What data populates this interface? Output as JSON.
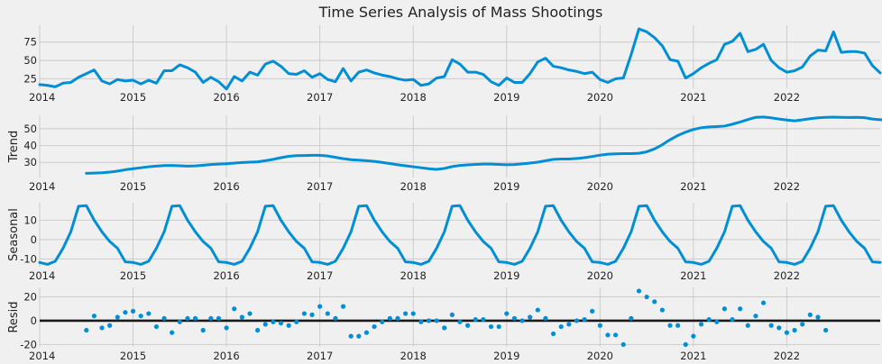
{
  "chart_data": {
    "type": "line",
    "title": "Time Series Analysis of Mass Shootings",
    "start": "2014-01",
    "x_ticks": [
      "2014",
      "2015",
      "2016",
      "2017",
      "2018",
      "2019",
      "2020",
      "2021",
      "2022"
    ],
    "panels": [
      {
        "name": "observed",
        "ylabel": "",
        "kind": "line",
        "color": "#008fd5",
        "ylim": [
          12,
          98
        ],
        "yticks": [
          25,
          50,
          75
        ],
        "offset": 0,
        "values": [
          17,
          16,
          14,
          19,
          20,
          27,
          32,
          37,
          22,
          18,
          24,
          22,
          23,
          18,
          23,
          19,
          36,
          36,
          44,
          40,
          34,
          20,
          27,
          21,
          11,
          28,
          22,
          34,
          30,
          45,
          49,
          42,
          32,
          31,
          36,
          27,
          32,
          24,
          21,
          39,
          22,
          34,
          37,
          33,
          30,
          28,
          25,
          23,
          24,
          16,
          18,
          26,
          28,
          51,
          45,
          34,
          34,
          31,
          21,
          16,
          26,
          20,
          20,
          32,
          48,
          53,
          42,
          40,
          37,
          35,
          32,
          34,
          24,
          20,
          25,
          26,
          58,
          93,
          89,
          81,
          70,
          51,
          49,
          26,
          32,
          40,
          46,
          51,
          72,
          76,
          87,
          62,
          65,
          72,
          50,
          40,
          34,
          36,
          41,
          56,
          64,
          63,
          89,
          61,
          62,
          62,
          60,
          43,
          33
        ]
      },
      {
        "name": "trend",
        "ylabel": "Trend",
        "kind": "line",
        "color": "#008fd5",
        "ylim": [
          21,
          58
        ],
        "yticks": [
          30,
          40,
          50
        ],
        "offset": 6,
        "values": [
          23.5,
          23.6,
          23.8,
          24.2,
          24.8,
          25.6,
          26.2,
          26.8,
          27.4,
          27.8,
          28.1,
          28.2,
          28.0,
          27.8,
          27.9,
          28.3,
          28.7,
          29.0,
          29.2,
          29.6,
          29.9,
          30.1,
          30.3,
          31.0,
          31.8,
          32.8,
          33.6,
          34.0,
          34.1,
          34.2,
          34.2,
          33.8,
          33.0,
          32.2,
          31.6,
          31.3,
          31.0,
          30.6,
          30.0,
          29.3,
          28.6,
          28.0,
          27.4,
          26.8,
          26.2,
          25.8,
          26.4,
          27.5,
          28.2,
          28.5,
          28.8,
          29.0,
          29.0,
          28.8,
          28.6,
          28.7,
          29.1,
          29.6,
          30.1,
          31.0,
          31.8,
          32.0,
          32.0,
          32.3,
          32.8,
          33.5,
          34.3,
          34.9,
          35.1,
          35.2,
          35.2,
          35.4,
          36.3,
          38.0,
          40.5,
          43.5,
          46.0,
          48.0,
          49.6,
          50.6,
          51.1,
          51.3,
          51.6,
          52.7,
          54.0,
          55.5,
          56.8,
          57.0,
          56.5,
          55.8,
          55.2,
          54.7,
          55.3,
          56.0,
          56.5,
          56.8,
          56.9,
          56.8,
          56.7,
          56.8,
          56.6,
          55.8,
          55.4,
          55.4,
          55.3,
          54.8,
          54.1,
          53.4
        ]
      },
      {
        "name": "seasonal",
        "ylabel": "Seasonal",
        "kind": "line",
        "color": "#008fd5",
        "ylim": [
          -14,
          19
        ],
        "yticks": [
          -10,
          0,
          10
        ],
        "offset": 0,
        "pattern": [
          -11.8,
          -12.8,
          -11.2,
          -4.5,
          4.0,
          17.2,
          17.5,
          10.0,
          4.0,
          -1.0,
          -4.5,
          -11.5
        ]
      },
      {
        "name": "resid",
        "ylabel": "Resid",
        "kind": "scatter",
        "color": "#008fd5",
        "ylim": [
          -22,
          28
        ],
        "yticks": [
          -20,
          0,
          20
        ],
        "zero_line": true,
        "offset": 6,
        "values": [
          -8,
          4,
          -6,
          -4,
          3,
          7,
          8,
          4,
          6,
          -5,
          2,
          -10,
          -1,
          2,
          2,
          -8,
          2,
          2,
          -6,
          10,
          3,
          6,
          -8,
          -3,
          -1,
          -2,
          -4,
          -1,
          6,
          5,
          12,
          6,
          2,
          12,
          -13,
          -13,
          -10,
          -5,
          -1,
          2,
          2,
          6,
          6,
          -1,
          0,
          0,
          -6,
          5,
          -1,
          -4,
          1,
          1,
          -5,
          -5,
          6,
          2,
          0,
          3,
          9,
          2,
          -11,
          -5,
          -3,
          0,
          1,
          8,
          -4,
          -12,
          -12,
          -20,
          2,
          25,
          20,
          16,
          9,
          -4,
          -4,
          -20,
          -13,
          -3,
          1,
          -1,
          10,
          1,
          10,
          -4,
          4,
          15,
          -4,
          -6,
          -10,
          -8,
          -3,
          5,
          3,
          -8
        ]
      }
    ]
  }
}
